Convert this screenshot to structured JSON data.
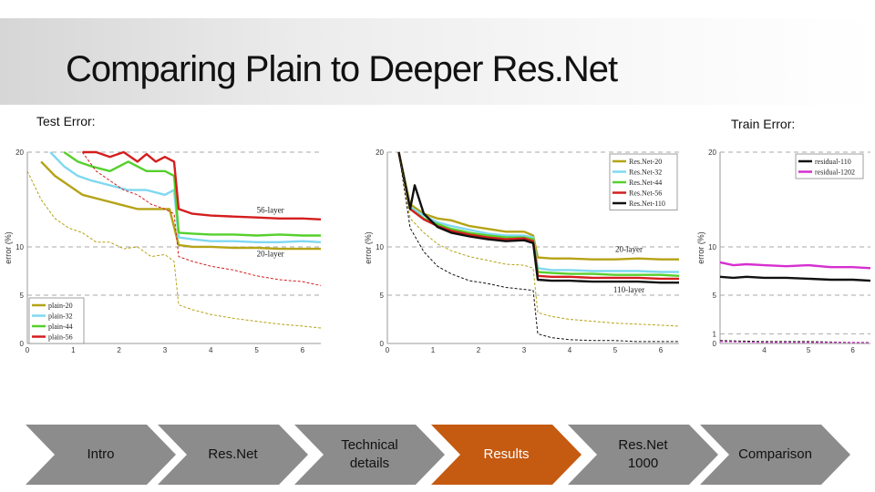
{
  "slide": {
    "title": "Comparing Plain to Deeper Res.Net",
    "test_label": "Test Error:",
    "train_label": "Train Error:"
  },
  "nav": {
    "steps": [
      {
        "label": "Intro",
        "active": false
      },
      {
        "label": "Res.Net",
        "active": false
      },
      {
        "label": "Technical\ndetails",
        "active": false
      },
      {
        "label": "Results",
        "active": true
      },
      {
        "label": "Res.Net\n1000",
        "active": false
      },
      {
        "label": "Comparison",
        "active": false
      }
    ],
    "colors": {
      "inactive": "#8c8c8c",
      "active": "#c55a11"
    }
  },
  "chart_data": [
    {
      "type": "line",
      "ylabel": "error (%)",
      "xlim": [
        0,
        6.4
      ],
      "ylim": [
        0,
        20
      ],
      "xticks": [
        "0",
        "1",
        "2",
        "3",
        "4",
        "5",
        "6"
      ],
      "yticks": [
        "0",
        "5",
        "10",
        "20"
      ],
      "gridlines_y": [
        5,
        10,
        20
      ],
      "legend_position": "bottom-left",
      "annotations": [
        {
          "text": "56-layer",
          "x": 5.3,
          "y": 13.6
        },
        {
          "text": "20-layer",
          "x": 5.3,
          "y": 9.0
        }
      ],
      "series": [
        {
          "name": "plain-20",
          "color": "#b5a316",
          "style": "solid",
          "x": [
            0.3,
            0.6,
            0.9,
            1.2,
            1.6,
            2.0,
            2.4,
            2.8,
            3.1,
            3.3,
            3.6,
            4.0,
            4.5,
            5.0,
            5.5,
            6.0,
            6.4
          ],
          "y": [
            19,
            17.5,
            16.5,
            15.5,
            15,
            14.5,
            14,
            14,
            14,
            10.2,
            10,
            10,
            9.9,
            9.9,
            9.8,
            9.8,
            9.8
          ]
        },
        {
          "name": "plain-32",
          "color": "#7fd8f0",
          "style": "solid",
          "x": [
            0.5,
            0.8,
            1.1,
            1.4,
            1.8,
            2.2,
            2.6,
            3.0,
            3.2,
            3.3,
            3.6,
            4.0,
            4.5,
            5.0,
            5.5,
            6.0,
            6.4
          ],
          "y": [
            20,
            18.5,
            17.5,
            17,
            16.5,
            16,
            16,
            15.5,
            16,
            11,
            10.8,
            10.6,
            10.6,
            10.5,
            10.5,
            10.6,
            10.5
          ]
        },
        {
          "name": "plain-44",
          "color": "#55d02c",
          "style": "solid",
          "x": [
            0.8,
            1.1,
            1.4,
            1.8,
            2.2,
            2.6,
            3.0,
            3.2,
            3.3,
            3.6,
            4.0,
            4.5,
            5.0,
            5.5,
            6.0,
            6.4
          ],
          "y": [
            20,
            19,
            18.5,
            18,
            19,
            18,
            18,
            17.5,
            11.5,
            11.4,
            11.3,
            11.3,
            11.2,
            11.3,
            11.2,
            11.2
          ]
        },
        {
          "name": "plain-56",
          "color": "#d41e1e",
          "style": "solid",
          "x": [
            1.2,
            1.5,
            1.8,
            2.1,
            2.4,
            2.6,
            2.8,
            3.0,
            3.2,
            3.3,
            3.6,
            4.0,
            4.5,
            5.0,
            5.5,
            6.0,
            6.4
          ],
          "y": [
            20,
            20,
            19.5,
            20,
            19,
            19.8,
            19,
            19.5,
            19,
            14,
            13.5,
            13.3,
            13.2,
            13.1,
            13,
            13,
            12.9
          ]
        },
        {
          "name": "plain-20 (train)",
          "color": "#b5a316",
          "style": "dashed",
          "x": [
            0,
            0.3,
            0.6,
            0.9,
            1.2,
            1.5,
            1.8,
            2.1,
            2.4,
            2.7,
            3.0,
            3.2,
            3.3,
            3.6,
            4.0,
            4.5,
            5.0,
            5.5,
            6.0,
            6.4
          ],
          "y": [
            18,
            15,
            13,
            12,
            11.5,
            10.5,
            10.5,
            9.8,
            10,
            9,
            9.2,
            8.5,
            4,
            3.5,
            3,
            2.6,
            2.3,
            2,
            1.8,
            1.6
          ]
        },
        {
          "name": "plain-56 (train)",
          "color": "#d41e1e",
          "style": "dashed",
          "x": [
            1.2,
            1.5,
            1.8,
            2.1,
            2.4,
            2.7,
            3.0,
            3.2,
            3.3,
            3.6,
            4.0,
            4.5,
            5.0,
            5.5,
            6.0,
            6.4
          ],
          "y": [
            20,
            18,
            17,
            16,
            15.5,
            14.5,
            14,
            13.5,
            9,
            8.5,
            8,
            7.6,
            7,
            6.6,
            6.4,
            6
          ]
        }
      ]
    },
    {
      "type": "line",
      "ylabel": "error (%)",
      "xlim": [
        0,
        6.4
      ],
      "ylim": [
        0,
        20
      ],
      "xticks": [
        "0",
        "1",
        "2",
        "3",
        "4",
        "5",
        "6"
      ],
      "yticks": [
        "0",
        "5",
        "10",
        "20"
      ],
      "gridlines_y": [
        5,
        10,
        20
      ],
      "legend_position": "top-right",
      "annotations": [
        {
          "text": "20-layer",
          "x": 5.3,
          "y": 9.5
        },
        {
          "text": "110-layer",
          "x": 5.3,
          "y": 5.3
        }
      ],
      "series": [
        {
          "name": "Res.Net-20",
          "color": "#b5a316",
          "style": "solid",
          "x": [
            0.25,
            0.5,
            0.8,
            1.1,
            1.4,
            1.8,
            2.2,
            2.6,
            3.0,
            3.2,
            3.3,
            3.6,
            4.0,
            4.5,
            5.0,
            5.5,
            6.0,
            6.4
          ],
          "y": [
            20,
            14.5,
            13.5,
            13,
            12.8,
            12.2,
            11.9,
            11.6,
            11.6,
            11.2,
            8.9,
            8.8,
            8.8,
            8.7,
            8.7,
            8.8,
            8.7,
            8.7
          ]
        },
        {
          "name": "Res.Net-32",
          "color": "#7fd8f0",
          "style": "solid",
          "x": [
            0.25,
            0.5,
            0.8,
            1.1,
            1.4,
            1.8,
            2.2,
            2.6,
            3.0,
            3.2,
            3.3,
            3.6,
            4.0,
            4.5,
            5.0,
            5.5,
            6.0,
            6.4
          ],
          "y": [
            20,
            14.2,
            13.3,
            12.6,
            12.2,
            11.8,
            11.4,
            11.2,
            11.2,
            11,
            7.8,
            7.6,
            7.6,
            7.5,
            7.5,
            7.5,
            7.4,
            7.4
          ]
        },
        {
          "name": "Res.Net-44",
          "color": "#55d02c",
          "style": "solid",
          "x": [
            0.25,
            0.5,
            0.8,
            1.1,
            1.4,
            1.8,
            2.2,
            2.6,
            3.0,
            3.2,
            3.3,
            3.6,
            4.0,
            4.5,
            5.0,
            5.5,
            6.0,
            6.4
          ],
          "y": [
            20,
            14,
            13,
            12.4,
            11.9,
            11.5,
            11.2,
            11,
            11,
            10.8,
            7.4,
            7.3,
            7.2,
            7.2,
            7.1,
            7.1,
            7.1,
            7.0
          ]
        },
        {
          "name": "Res.Net-56",
          "color": "#d41e1e",
          "style": "solid",
          "x": [
            0.25,
            0.5,
            0.8,
            1.1,
            1.4,
            1.8,
            2.2,
            2.6,
            3.0,
            3.2,
            3.3,
            3.6,
            4.0,
            4.5,
            5.0,
            5.5,
            6.0,
            6.4
          ],
          "y": [
            20,
            14,
            12.9,
            12.2,
            11.7,
            11.3,
            11,
            10.8,
            10.9,
            10.6,
            7.0,
            6.9,
            6.9,
            6.8,
            6.8,
            6.8,
            6.7,
            6.7
          ]
        },
        {
          "name": "Res.Net-110",
          "color": "#111111",
          "style": "solid",
          "x": [
            0.25,
            0.5,
            0.6,
            0.8,
            1.1,
            1.4,
            1.8,
            2.2,
            2.6,
            3.0,
            3.2,
            3.3,
            3.6,
            4.0,
            4.5,
            5.0,
            5.5,
            6.0,
            6.4
          ],
          "y": [
            20,
            14,
            16.5,
            13.5,
            12.1,
            11.5,
            11.1,
            10.8,
            10.6,
            10.7,
            10.4,
            6.6,
            6.5,
            6.5,
            6.4,
            6.4,
            6.4,
            6.3,
            6.3
          ]
        },
        {
          "name": "Res.Net-20 (train)",
          "color": "#b5a316",
          "style": "dashed",
          "x": [
            0.25,
            0.5,
            0.8,
            1.1,
            1.4,
            1.8,
            2.2,
            2.6,
            3.0,
            3.2,
            3.3,
            3.6,
            4.0,
            4.5,
            5.0,
            5.5,
            6.0,
            6.4
          ],
          "y": [
            20,
            13,
            11.5,
            10.3,
            9.6,
            9,
            8.6,
            8.2,
            8.1,
            7.8,
            3.2,
            2.8,
            2.5,
            2.3,
            2.1,
            2,
            1.9,
            1.8
          ]
        },
        {
          "name": "Res.Net-110 (train)",
          "color": "#111111",
          "style": "dashed",
          "x": [
            0.25,
            0.5,
            0.8,
            1.1,
            1.4,
            1.8,
            2.2,
            2.6,
            3.0,
            3.2,
            3.3,
            3.6,
            4.0,
            4.5,
            5.0,
            5.5,
            6.0,
            6.4
          ],
          "y": [
            20,
            12,
            9.5,
            8,
            7.2,
            6.5,
            6.2,
            5.8,
            5.6,
            5.5,
            1.0,
            0.6,
            0.4,
            0.3,
            0.3,
            0.2,
            0.2,
            0.2
          ]
        }
      ]
    },
    {
      "type": "line",
      "ylabel": "error (%)",
      "xlim": [
        3.0,
        6.4
      ],
      "ylim": [
        0,
        20
      ],
      "xticks": [
        "4",
        "5",
        "6"
      ],
      "yticks": [
        "0",
        "1",
        "5",
        "10",
        "20"
      ],
      "gridlines_y": [
        1,
        5,
        10,
        20
      ],
      "legend_position": "top-right",
      "series": [
        {
          "name": "residual-110",
          "color": "#111111",
          "style": "solid",
          "x": [
            3.0,
            3.3,
            3.6,
            4.0,
            4.5,
            5.0,
            5.5,
            6.0,
            6.4
          ],
          "y": [
            6.9,
            6.8,
            6.9,
            6.8,
            6.8,
            6.7,
            6.6,
            6.6,
            6.5
          ]
        },
        {
          "name": "residual-1202",
          "color": "#d62fd0",
          "style": "solid",
          "x": [
            3.0,
            3.3,
            3.6,
            4.0,
            4.5,
            5.0,
            5.5,
            6.0,
            6.4
          ],
          "y": [
            8.4,
            8.1,
            8.2,
            8.1,
            8.0,
            8.1,
            7.9,
            7.9,
            7.8
          ]
        },
        {
          "name": "residual-110 (train)",
          "color": "#111111",
          "style": "dashed",
          "x": [
            3.0,
            4.0,
            5.0,
            6.0,
            6.4
          ],
          "y": [
            0.3,
            0.2,
            0.2,
            0.1,
            0.1
          ]
        },
        {
          "name": "residual-1202 (train)",
          "color": "#d62fd0",
          "style": "dashed",
          "x": [
            3.0,
            4.0,
            5.0,
            6.0,
            6.4
          ],
          "y": [
            0.2,
            0.1,
            0.1,
            0.1,
            0.1
          ]
        }
      ]
    }
  ]
}
